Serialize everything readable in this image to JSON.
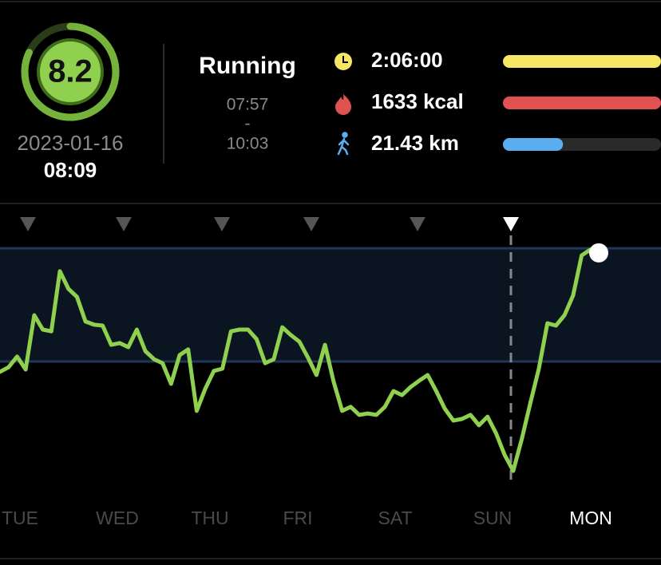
{
  "score": {
    "value": 8.2,
    "max": 10,
    "date": "2023-01-16",
    "time": "08:09"
  },
  "activity": {
    "name": "Running",
    "start": "07:57",
    "separator": "-",
    "end": "10:03"
  },
  "stats": [
    {
      "text": "2:06:00",
      "color": "#f5e663",
      "progress": 100
    },
    {
      "text": "1633 kcal",
      "color": "#e05252",
      "progress": 100
    },
    {
      "text": "21.43 km",
      "color": "#5aaef0",
      "progress": 38
    }
  ],
  "chart_data": {
    "type": "line",
    "days": [
      "TUE",
      "WED",
      "THU",
      "FRI",
      "SAT",
      "SUN",
      "MON"
    ],
    "current_day": 6,
    "color": "#8fd14f",
    "ylim": [
      0,
      100
    ],
    "target_range": [
      46.4,
      85.8
    ],
    "values": [
      42.8,
      44.4,
      48.1,
      43.6,
      62.5,
      57.5,
      56.9,
      77.8,
      71.7,
      68.9,
      60.3,
      59.2,
      58.9,
      52.2,
      52.8,
      51.4,
      57.5,
      50,
      47.2,
      45.8,
      38.6,
      48.6,
      50.6,
      29.2,
      36.9,
      43.1,
      43.9,
      56.9,
      57.5,
      57.5,
      54.2,
      45.8,
      47.2,
      58.3,
      55.6,
      53.3,
      47.8,
      41.7,
      52.2,
      39.4,
      29.2,
      30.6,
      27.8,
      28.3,
      27.8,
      30.6,
      36.1,
      34.7,
      37.5,
      39.7,
      41.7,
      36.1,
      30,
      25.8,
      26.4,
      27.8,
      24.2,
      27.2,
      21.4,
      13.9,
      8.3,
      19.4,
      31.9,
      43.9,
      59.7,
      58.9,
      62.5,
      69.4,
      83.3,
      85.3,
      84.2
    ]
  }
}
